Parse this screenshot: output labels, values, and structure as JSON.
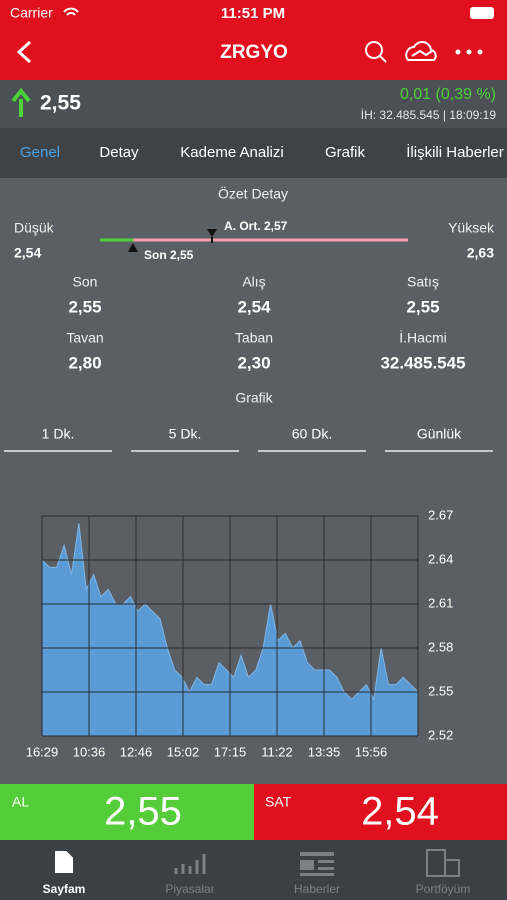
{
  "status_bar": {
    "carrier": "Carrier",
    "time": "11:51 PM"
  },
  "nav": {
    "title": "ZRGYO"
  },
  "quote": {
    "price": "2,55",
    "change": "0,01 (0,39 %)",
    "info": "İH:  32.485.545 | 18:09:19"
  },
  "tabs": [
    "Genel",
    "Detay",
    "Kademe Analizi",
    "Grafik",
    "İlişkili Haberler"
  ],
  "summary": {
    "title": "Özet Detay",
    "low_label": "Düşük",
    "low_value": "2,54",
    "high_label": "Yüksek",
    "high_value": "2,63",
    "avg_marker": "A. Ort. 2,57",
    "last_marker": "Son 2,55",
    "stats": [
      {
        "label": "Son",
        "value": "2,55"
      },
      {
        "label": "Alış",
        "value": "2,54"
      },
      {
        "label": "Satış",
        "value": "2,55"
      },
      {
        "label": "Tavan",
        "value": "2,80"
      },
      {
        "label": "Taban",
        "value": "2,30"
      },
      {
        "label": "İ.Hacmi",
        "value": "32.485.545"
      }
    ]
  },
  "chart_section": {
    "title": "Grafik",
    "periods": [
      "1 Dk.",
      "5 Dk.",
      "60 Dk.",
      "Günlük"
    ]
  },
  "chart_data": {
    "type": "area",
    "color": "#5b9bd5",
    "x_labels": [
      "16:29",
      "10:36",
      "12:46",
      "15:02",
      "17:15",
      "11:22",
      "13:35",
      "15:56"
    ],
    "values": [
      2.64,
      2.635,
      2.635,
      2.65,
      2.63,
      2.665,
      2.62,
      2.63,
      2.615,
      2.62,
      2.61,
      2.61,
      2.615,
      2.605,
      2.61,
      2.605,
      2.6,
      2.58,
      2.565,
      2.56,
      2.55,
      2.56,
      2.555,
      2.555,
      2.57,
      2.565,
      2.56,
      2.575,
      2.56,
      2.565,
      2.58,
      2.61,
      2.585,
      2.59,
      2.58,
      2.585,
      2.57,
      2.565,
      2.565,
      2.565,
      2.56,
      2.55,
      2.545,
      2.55,
      2.555,
      2.545,
      2.58,
      2.555,
      2.555,
      2.56,
      2.555,
      2.55
    ],
    "ylim": [
      2.52,
      2.67
    ],
    "yticks": [
      2.52,
      2.55,
      2.58,
      2.61,
      2.64,
      2.67
    ],
    "grid": true
  },
  "trade": {
    "buy_label": "AL",
    "buy_price": "2,55",
    "sell_label": "SAT",
    "sell_price": "2,54"
  },
  "tab_bar": [
    "Sayfam",
    "Piyasalar",
    "Haberler",
    "Portföyüm"
  ]
}
